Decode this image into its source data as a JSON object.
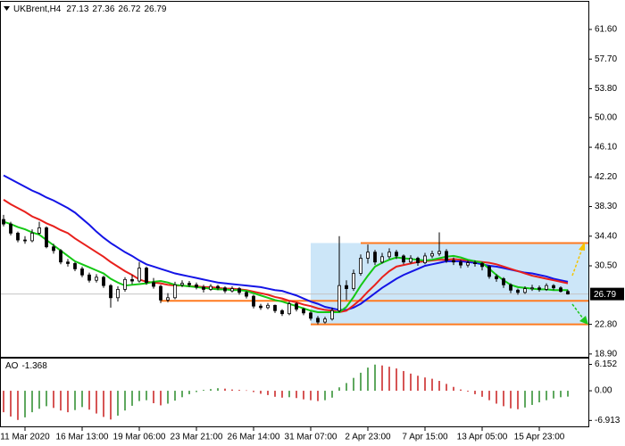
{
  "chart_data": {
    "type": "candlestick",
    "symbol": "UKBrent,H4",
    "ohlc": [
      [
        36.6,
        37.2,
        35.7,
        36.0
      ],
      [
        36.0,
        36.3,
        34.5,
        34.8
      ],
      [
        34.8,
        35.0,
        33.6,
        33.9
      ],
      [
        33.9,
        34.4,
        33.4,
        33.8
      ],
      [
        33.8,
        35.3,
        33.6,
        34.8
      ],
      [
        34.8,
        36.3,
        34.6,
        35.5
      ],
      [
        35.5,
        35.7,
        32.8,
        33.0
      ],
      [
        33.0,
        33.4,
        32.1,
        32.5
      ],
      [
        32.5,
        32.7,
        30.7,
        31.0
      ],
      [
        31.0,
        31.4,
        30.4,
        30.8
      ],
      [
        30.8,
        31.0,
        29.8,
        30.1
      ],
      [
        30.1,
        30.4,
        29.0,
        29.3
      ],
      [
        29.3,
        29.6,
        28.3,
        28.6
      ],
      [
        28.6,
        29.4,
        28.3,
        29.0
      ],
      [
        29.0,
        29.2,
        27.6,
        27.9
      ],
      [
        27.9,
        28.1,
        25.0,
        26.3
      ],
      [
        26.3,
        27.8,
        25.8,
        27.4
      ],
      [
        27.4,
        29.0,
        27.1,
        28.7
      ],
      [
        28.7,
        29.3,
        28.1,
        28.5
      ],
      [
        28.5,
        31.0,
        28.3,
        30.2
      ],
      [
        30.2,
        30.4,
        28.0,
        28.3
      ],
      [
        28.3,
        28.9,
        27.5,
        27.8
      ],
      [
        27.8,
        28.0,
        25.6,
        26.0
      ],
      [
        26.0,
        26.9,
        25.7,
        26.3
      ],
      [
        26.3,
        28.4,
        26.1,
        28.0
      ],
      [
        28.0,
        28.6,
        27.7,
        28.2
      ],
      [
        28.2,
        28.5,
        27.7,
        28.0
      ],
      [
        28.0,
        28.3,
        27.4,
        27.7
      ],
      [
        27.7,
        28.0,
        27.0,
        27.4
      ],
      [
        27.4,
        28.1,
        27.2,
        27.8
      ],
      [
        27.8,
        28.0,
        27.3,
        27.6
      ],
      [
        27.6,
        27.8,
        26.9,
        27.2
      ],
      [
        27.2,
        27.8,
        27.0,
        27.5
      ],
      [
        27.5,
        27.7,
        26.7,
        27.0
      ],
      [
        27.0,
        27.2,
        26.2,
        26.5
      ],
      [
        26.5,
        26.7,
        24.9,
        25.2
      ],
      [
        25.2,
        25.5,
        24.7,
        25.0
      ],
      [
        25.0,
        25.6,
        24.8,
        25.3
      ],
      [
        25.3,
        25.4,
        24.3,
        24.6
      ],
      [
        24.6,
        24.8,
        23.9,
        24.2
      ],
      [
        24.2,
        25.8,
        24.0,
        25.5
      ],
      [
        25.5,
        25.7,
        24.5,
        24.8
      ],
      [
        24.8,
        25.0,
        24.0,
        24.3
      ],
      [
        24.3,
        24.5,
        23.3,
        23.6
      ],
      [
        23.6,
        23.9,
        22.8,
        23.1
      ],
      [
        23.1,
        23.8,
        22.9,
        23.5
      ],
      [
        23.5,
        25.0,
        23.3,
        24.6
      ],
      [
        24.6,
        34.4,
        24.4,
        27.9
      ],
      [
        27.9,
        28.6,
        26.0,
        27.5
      ],
      [
        27.5,
        30.0,
        27.2,
        29.5
      ],
      [
        29.5,
        32.0,
        29.2,
        31.5
      ],
      [
        31.5,
        33.3,
        30.8,
        32.3
      ],
      [
        32.3,
        32.6,
        30.6,
        31.0
      ],
      [
        31.0,
        32.2,
        30.8,
        31.7
      ],
      [
        31.7,
        32.8,
        31.4,
        32.3
      ],
      [
        32.3,
        32.6,
        31.4,
        31.8
      ],
      [
        31.8,
        32.0,
        30.7,
        31.0
      ],
      [
        31.0,
        31.9,
        30.8,
        31.5
      ],
      [
        31.5,
        31.7,
        30.5,
        30.9
      ],
      [
        30.9,
        32.2,
        30.7,
        31.8
      ],
      [
        31.8,
        32.5,
        31.5,
        32.1
      ],
      [
        32.1,
        34.9,
        31.8,
        32.4
      ],
      [
        32.4,
        32.7,
        30.9,
        31.2
      ],
      [
        31.2,
        31.6,
        30.6,
        31.0
      ],
      [
        31.0,
        31.3,
        30.2,
        30.6
      ],
      [
        30.6,
        31.2,
        30.3,
        30.9
      ],
      [
        30.9,
        31.2,
        30.4,
        30.8
      ],
      [
        30.8,
        31.0,
        29.9,
        30.4
      ],
      [
        30.4,
        30.6,
        28.8,
        29.1
      ],
      [
        29.1,
        29.4,
        28.4,
        28.8
      ],
      [
        28.8,
        29.0,
        27.6,
        28.0
      ],
      [
        28.0,
        28.2,
        26.9,
        27.3
      ],
      [
        27.3,
        27.5,
        26.7,
        27.0
      ],
      [
        27.0,
        27.8,
        26.8,
        27.5
      ],
      [
        27.5,
        28.0,
        27.2,
        27.6
      ],
      [
        27.6,
        27.9,
        27.1,
        27.4
      ],
      [
        27.4,
        28.2,
        27.2,
        27.9
      ],
      [
        27.9,
        28.1,
        27.3,
        27.6
      ],
      [
        27.6,
        27.8,
        27.0,
        27.13
      ],
      [
        27.13,
        27.36,
        26.72,
        26.79
      ]
    ],
    "candle_color": "#000000",
    "ma": [
      {
        "color": "#1414e6",
        "values": [
          42.4,
          41.9,
          41.4,
          40.9,
          40.4,
          40.0,
          39.5,
          39.1,
          38.6,
          38.1,
          37.5,
          36.7,
          35.9,
          35.0,
          34.2,
          33.5,
          32.9,
          32.3,
          31.8,
          31.2,
          30.7,
          30.4,
          30.1,
          29.8,
          29.5,
          29.3,
          29.1,
          28.9,
          28.7,
          28.5,
          28.3,
          28.2,
          28.1,
          28.0,
          27.9,
          27.8,
          27.7,
          27.5,
          27.3,
          27.2,
          26.9,
          26.6,
          26.2,
          25.8,
          25.5,
          25.1,
          24.9,
          24.7,
          24.7,
          25.0,
          25.5,
          26.2,
          26.9,
          27.6,
          28.2,
          28.8,
          29.3,
          29.7,
          30.1,
          30.5,
          30.7,
          30.9,
          31.1,
          31.1,
          31.1,
          31.0,
          30.9,
          30.7,
          30.5,
          30.4,
          30.2,
          30.0,
          29.8,
          29.6,
          29.5,
          29.3,
          29.1,
          28.8,
          28.6,
          28.4
        ]
      },
      {
        "color": "#e8201c",
        "values": [
          39.2,
          38.6,
          38.1,
          37.6,
          37.0,
          36.6,
          36.1,
          35.7,
          35.2,
          34.8,
          34.1,
          33.5,
          32.9,
          32.3,
          31.7,
          31.0,
          30.4,
          29.8,
          29.3,
          28.7,
          28.4,
          28.3,
          28.2,
          28.0,
          27.9,
          27.9,
          27.8,
          27.8,
          27.7,
          27.7,
          27.6,
          27.5,
          27.5,
          27.4,
          27.3,
          27.1,
          26.9,
          26.7,
          26.4,
          26.2,
          25.9,
          25.7,
          25.4,
          25.2,
          24.9,
          24.7,
          24.6,
          24.4,
          24.6,
          25.3,
          26.1,
          27.1,
          28.0,
          29.0,
          29.8,
          30.4,
          30.6,
          30.8,
          31.0,
          31.1,
          31.2,
          31.3,
          31.3,
          31.4,
          31.3,
          31.2,
          31.1,
          31.0,
          30.9,
          30.7,
          30.4,
          30.1,
          29.8,
          29.5,
          29.2,
          29.0,
          28.8,
          28.6,
          28.4,
          28.2
        ]
      },
      {
        "color": "#14c814",
        "values": [
          36.3,
          36.0,
          35.6,
          35.3,
          34.9,
          34.6,
          33.9,
          33.2,
          32.5,
          31.8,
          31.1,
          30.7,
          30.3,
          29.9,
          29.5,
          28.8,
          28.3,
          27.9,
          28.0,
          28.1,
          28.2,
          28.4,
          28.5,
          28.3,
          28.0,
          27.9,
          27.8,
          27.7,
          27.6,
          27.5,
          27.4,
          27.4,
          27.3,
          27.3,
          27.2,
          26.9,
          26.6,
          26.3,
          26.0,
          25.8,
          25.5,
          25.2,
          24.9,
          24.6,
          24.4,
          24.4,
          24.4,
          24.4,
          25.1,
          26.4,
          27.9,
          29.2,
          30.4,
          30.9,
          31.3,
          31.6,
          31.5,
          31.4,
          31.3,
          31.2,
          31.3,
          31.5,
          31.7,
          31.8,
          31.6,
          31.3,
          31.1,
          30.9,
          30.1,
          29.3,
          28.6,
          28.0,
          27.7,
          27.6,
          27.5,
          27.4,
          27.4,
          27.3,
          27.3,
          27.3
        ]
      }
    ],
    "ylim": [
      18.53,
      65.24
    ],
    "yticks": [
      {
        "value": 61.6,
        "label": "61.60"
      },
      {
        "value": 57.7,
        "label": "57.70"
      },
      {
        "value": 53.8,
        "label": "53.80"
      },
      {
        "value": 50.0,
        "label": "50.00"
      },
      {
        "value": 46.1,
        "label": "46.10"
      },
      {
        "value": 42.2,
        "label": "42.20"
      },
      {
        "value": 38.3,
        "label": "38.30"
      },
      {
        "value": 34.4,
        "label": "34.40"
      },
      {
        "value": 30.5,
        "label": "30.50"
      },
      {
        "value": 22.8,
        "label": "22.80"
      },
      {
        "value": 18.9,
        "label": "18.90"
      }
    ],
    "xtick_labels": [
      "11 Mar 2020",
      "16 Mar 13:00",
      "19 Mar 06:00",
      "23 Mar 21:00",
      "26 Mar 14:00",
      "31 Mar 07:00",
      "2 Apr 23:00",
      "7 Apr 15:00",
      "13 Apr 05:00",
      "15 Apr 23:00"
    ],
    "zone": [
      22.8,
      33.5
    ],
    "zone_color": "#cce6f8",
    "levels": [
      33.5,
      25.9,
      22.8
    ],
    "level_color": "#ff7a1f",
    "price_line_color": "#c4c4c4",
    "ao": {
      "type": "histogram",
      "name": "AO",
      "values": [
        -5.0,
        -6.0,
        -6.8,
        -6.2,
        -5.0,
        -4.2,
        -3.6,
        -4.0,
        -4.6,
        -5.0,
        -4.5,
        -3.8,
        -4.4,
        -5.3,
        -6.1,
        -6.7,
        -5.8,
        -4.6,
        -3.5,
        -2.4,
        -2.2,
        -2.9,
        -3.4,
        -3.0,
        -2.3,
        -1.5,
        -0.8,
        -0.3,
        0.2,
        0.4,
        0.6,
        0.5,
        0.3,
        0.2,
        0.1,
        -0.3,
        -0.7,
        -1.0,
        -1.4,
        -1.6,
        -1.5,
        -1.7,
        -2.0,
        -2.2,
        -2.4,
        -2.2,
        -1.6,
        0.8,
        1.8,
        3.0,
        4.2,
        5.4,
        6.1,
        5.9,
        5.6,
        5.2,
        4.6,
        4.0,
        3.5,
        3.1,
        2.8,
        2.3,
        1.6,
        0.9,
        0.3,
        -0.2,
        -0.8,
        -1.4,
        -2.2,
        -3.0,
        -3.6,
        -4.1,
        -4.3,
        -3.9,
        -3.3,
        -2.7,
        -2.2,
        -1.8,
        -1.5,
        -1.368
      ],
      "up_color": "#2a8c2a",
      "down_color": "#c81e1e",
      "ylim": [
        -8.3,
        7.5
      ],
      "yticks": [
        6.152,
        {
          "value": 0,
          "label": "0.00"
        },
        -6.913
      ]
    }
  }
}
